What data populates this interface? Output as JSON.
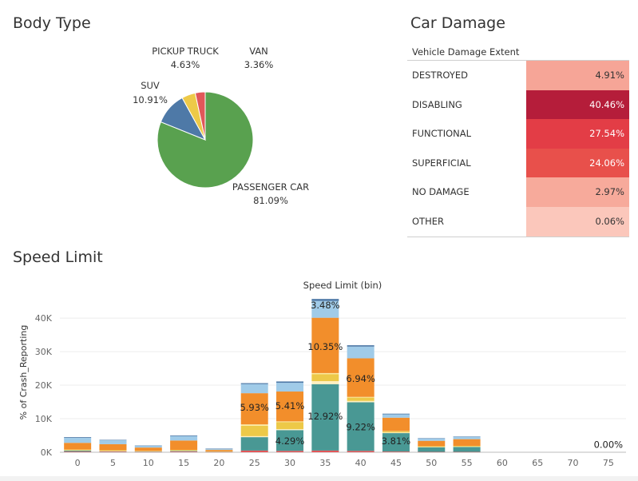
{
  "body_type": {
    "title": "Body Type",
    "chart_data": {
      "type": "pie",
      "slices": [
        {
          "label": "PASSENGER CAR",
          "pct": "81.09%",
          "value": 81.09,
          "color": "#59a14f"
        },
        {
          "label": "SUV",
          "pct": "10.91%",
          "value": 10.91,
          "color": "#4e79a7"
        },
        {
          "label": "PICKUP TRUCK",
          "pct": "4.63%",
          "value": 4.63,
          "color": "#edc948"
        },
        {
          "label": "VAN",
          "pct": "3.36%",
          "value": 3.36,
          "color": "#e15759"
        }
      ]
    }
  },
  "car_damage": {
    "title": "Car Damage",
    "header": "Vehicle Damage Extent",
    "chart_data": {
      "type": "table",
      "rows": [
        {
          "name": "DESTROYED",
          "value": "4.91%",
          "color": "#f6a597",
          "text_color": "#333333"
        },
        {
          "name": "DISABLING",
          "value": "40.46%",
          "color": "#b51d3a",
          "text_color": "#ffffff"
        },
        {
          "name": "FUNCTIONAL",
          "value": "27.54%",
          "color": "#e33d46",
          "text_color": "#ffffff"
        },
        {
          "name": "SUPERFICIAL",
          "value": "24.06%",
          "color": "#e8504b",
          "text_color": "#ffffff"
        },
        {
          "name": "NO DAMAGE",
          "value": "2.97%",
          "color": "#f7aa9b",
          "text_color": "#333333"
        },
        {
          "name": "OTHER",
          "value": "0.06%",
          "color": "#fbc7bb",
          "text_color": "#333333"
        }
      ]
    }
  },
  "speed_limit": {
    "title": "Speed Limit",
    "chart_data": {
      "type": "bar",
      "xlabel": "Speed Limit (bin)",
      "ylabel": "% of Crash_Reporting",
      "ylim": [
        0,
        45500
      ],
      "yticks": [
        0,
        10000,
        20000,
        30000,
        40000
      ],
      "ytick_labels": [
        "0K",
        "10K",
        "20K",
        "30K",
        "40K"
      ],
      "categories": [
        "0",
        "5",
        "10",
        "15",
        "20",
        "25",
        "30",
        "35",
        "40",
        "45",
        "50",
        "55",
        "60",
        "65",
        "70",
        "75"
      ],
      "series": [
        {
          "color": "#e15759",
          "values": [
            200,
            200,
            100,
            200,
            100,
            500,
            400,
            500,
            400,
            200,
            100,
            100,
            0,
            0,
            0,
            0
          ]
        },
        {
          "color": "#499894",
          "values": [
            300,
            100,
            100,
            200,
            100,
            4000,
            6200,
            19800,
            14500,
            5500,
            1400,
            1500,
            0,
            0,
            0,
            0
          ]
        },
        {
          "color": "#fff0c0",
          "values": [
            100,
            100,
            100,
            100,
            50,
            300,
            300,
            900,
            400,
            200,
            100,
            100,
            0,
            0,
            0,
            0
          ]
        },
        {
          "color": "#edc948",
          "values": [
            200,
            200,
            100,
            200,
            50,
            3100,
            2100,
            2100,
            1000,
            300,
            200,
            200,
            0,
            0,
            0,
            0
          ]
        },
        {
          "color": "#fbe9a0",
          "values": [
            0,
            0,
            0,
            0,
            0,
            400,
            200,
            300,
            200,
            100,
            0,
            0,
            0,
            0,
            0,
            0
          ]
        },
        {
          "color": "#f28e2b",
          "values": [
            2000,
            1800,
            1000,
            2800,
            400,
            9300,
            8900,
            16500,
            11500,
            4000,
            1600,
            2000,
            0,
            0,
            0,
            0
          ]
        },
        {
          "color": "#a0cbe8",
          "values": [
            1500,
            1200,
            500,
            1300,
            300,
            2700,
            2600,
            5000,
            3500,
            1000,
            700,
            700,
            0,
            0,
            0,
            0
          ]
        },
        {
          "color": "#4e79a7",
          "values": [
            200,
            100,
            100,
            200,
            100,
            300,
            400,
            600,
            400,
            200,
            100,
            100,
            0,
            0,
            0,
            0
          ]
        }
      ],
      "annotations": [
        {
          "x": "25",
          "y": 13300,
          "text": "5.93%"
        },
        {
          "x": "30",
          "y": 13800,
          "text": "5.41%"
        },
        {
          "x": "30",
          "y": 3300,
          "text": "4.29%"
        },
        {
          "x": "35",
          "y": 43800,
          "text": "3.48%"
        },
        {
          "x": "35",
          "y": 31400,
          "text": "10.35%"
        },
        {
          "x": "35",
          "y": 10700,
          "text": "12.92%"
        },
        {
          "x": "40",
          "y": 21900,
          "text": "6.94%"
        },
        {
          "x": "40",
          "y": 7500,
          "text": "9.22%"
        },
        {
          "x": "45",
          "y": 3300,
          "text": "3.81%"
        },
        {
          "x": "75",
          "y": 2300,
          "text": "0.00%"
        }
      ]
    }
  }
}
